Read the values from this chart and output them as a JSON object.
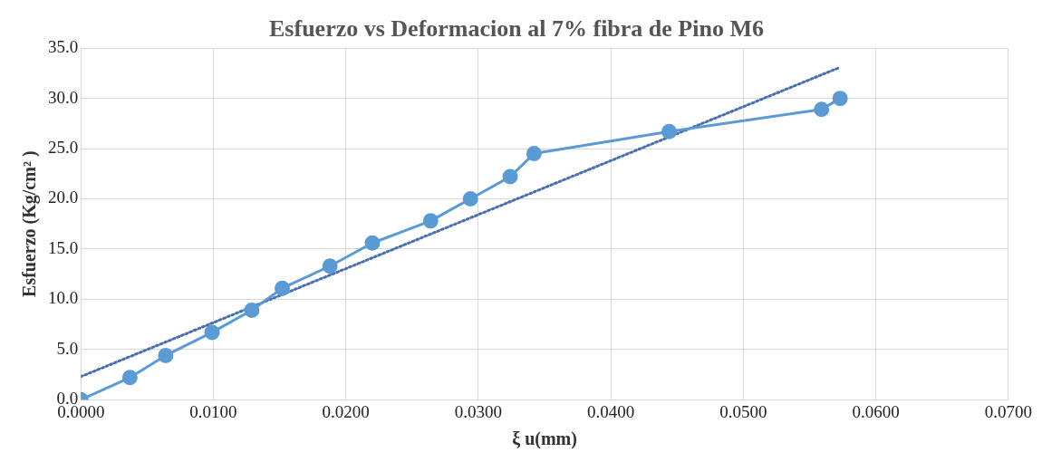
{
  "chart_data": {
    "type": "line",
    "title": "Esfuerzo vs Deformacion al 7% fibra de Pino M6",
    "xlabel": "ξ u(mm)",
    "ylabel": "Esfuerzo (Kg/cm² )",
    "x": [
      0,
      0.0037,
      0.0064,
      0.0099,
      0.0129,
      0.0152,
      0.0188,
      0.022,
      0.0264,
      0.0294,
      0.0324,
      0.0342,
      0.0444,
      0.0559,
      0.0573
    ],
    "series": [
      {
        "color": "#5b9bd5",
        "marker": "circle",
        "line_style": "solid",
        "values": [
          0,
          2.2,
          4.4,
          6.7,
          8.9,
          11.1,
          13.3,
          15.6,
          17.8,
          20.0,
          22.2,
          24.5,
          26.7,
          28.9,
          30.0
        ]
      },
      {
        "type": "line",
        "color": "#4a6fb0",
        "marker": "none",
        "line_style": "dotted",
        "x": [
          0,
          0.0573
        ],
        "values": [
          2.3,
          33.1
        ]
      }
    ],
    "xlim": [
      0,
      0.07
    ],
    "xticks": [
      {
        "value": 0,
        "label": "0.0000"
      },
      {
        "value": 0.01,
        "label": "0.0100"
      },
      {
        "value": 0.02,
        "label": "0.0200"
      },
      {
        "value": 0.03,
        "label": "0.0300"
      },
      {
        "value": 0.04,
        "label": "0.0400"
      },
      {
        "value": 0.05,
        "label": "0.0500"
      },
      {
        "value": 0.06,
        "label": "0.0600"
      },
      {
        "value": 0.07,
        "label": "0.0700"
      }
    ],
    "ylim": [
      0,
      35
    ],
    "yticks": [
      {
        "value": 0,
        "label": "0.0"
      },
      {
        "value": 5,
        "label": "5.0"
      },
      {
        "value": 10,
        "label": "10.0"
      },
      {
        "value": 15,
        "label": "15.0"
      },
      {
        "value": 20,
        "label": "20.0"
      },
      {
        "value": 25,
        "label": "25.0"
      },
      {
        "value": 30,
        "label": "30.0"
      },
      {
        "value": 35,
        "label": "35.0"
      }
    ],
    "grid": true,
    "legend": false
  }
}
